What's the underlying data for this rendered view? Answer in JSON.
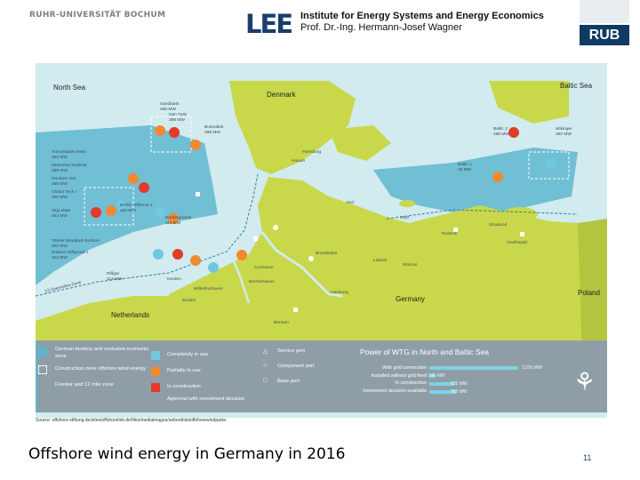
{
  "header": {
    "university": "RUHR-UNIVERSITÄT BOCHUM",
    "lee_logo": "LEE",
    "institute_line1": "Institute for Energy Systems and Energy Economics",
    "institute_line2": "Prof. Dr.-Ing. Hermann-Josef Wagner",
    "rub_logo": "RUB"
  },
  "map": {
    "regions": {
      "north_sea": "North Sea",
      "baltic_sea": "Baltic Sea",
      "denmark": "Denmark",
      "germany": "Germany",
      "netherlands": "Netherlands",
      "poland": "Poland"
    },
    "colors": {
      "sea": "#d2ebef",
      "land": "#c8d84a",
      "eez": "#5fb7cf",
      "completed": "#6fc8df",
      "partially": "#f08a2e",
      "construction": "#e23b2a"
    },
    "wind_parks": [
      {
        "name": "Sandbank",
        "mw": "288 MW"
      },
      {
        "name": "Dan Tysk",
        "mw": "288 MW"
      },
      {
        "name": "Butendiek",
        "mw": "288 MW"
      },
      {
        "name": "Amrumbank West",
        "mw": "302 MW"
      },
      {
        "name": "Meerwind Süd/Ost",
        "mw": "288 MW"
      },
      {
        "name": "Nordsee Ost",
        "mw": "295 MW"
      },
      {
        "name": "Global Tech I",
        "mw": "400 MW"
      },
      {
        "name": "BARD Offshore 1",
        "mw": "400 MW"
      },
      {
        "name": "Veja Mate",
        "mw": "402 MW"
      },
      {
        "name": "Nordergründe",
        "mw": "111 MW"
      },
      {
        "name": "Trianel Windpark Borkum",
        "mw": "200 MW"
      },
      {
        "name": "Borkum Riffgrund 1",
        "mw": "312 MW"
      },
      {
        "name": "Riffgat",
        "mw": "113 MW"
      },
      {
        "name": "Baltic 1",
        "mw": "48 MW"
      },
      {
        "name": "Baltic 2",
        "mw": "288 MW"
      },
      {
        "name": "Wikinger",
        "mw": "350 MW"
      }
    ],
    "cities": [
      "Husum",
      "Flensburg",
      "Kiel",
      "Rostock",
      "Stralsund",
      "Greifswald",
      "Lübeck",
      "Hamburg",
      "Bremerhaven",
      "Cuxhaven",
      "Wilhelmshaven",
      "Emden",
      "Norden",
      "Bremen",
      "Wismar",
      "Brunsbüttel"
    ],
    "sea_labels": [
      "AWZ",
      "12-Seemeilen-Zone"
    ]
  },
  "legend": {
    "items": [
      {
        "label": "German territory and exclusive economic zone"
      },
      {
        "label": "Construction zone offshore wind energy"
      },
      {
        "label": "Frontier and 12 mile zone"
      },
      {
        "label": "Completely in use"
      },
      {
        "label": "Partially in use"
      },
      {
        "label": "In construction"
      },
      {
        "label": "Approval with investment decision"
      },
      {
        "label": "Service port"
      },
      {
        "label": "Component port"
      },
      {
        "label": "Base port"
      }
    ],
    "power": {
      "title": "Power of WTG in North and Baltic Sea",
      "rows": [
        {
          "label": "With grid connection",
          "value": "3,295 MW",
          "fraction": 1.0
        },
        {
          "label": "Installed without grid feed",
          "value": "246 MW",
          "fraction": 0.07
        },
        {
          "label": "In construction",
          "value": "939 MW",
          "fraction": 0.28
        },
        {
          "label": "Investment decision available",
          "value": "985 MW",
          "fraction": 0.3
        }
      ]
    }
  },
  "source": "Source: offshore-stiftung.de/sites/offshorelink.de/files/medialmages/ueberdiststoffshorewindparks",
  "slide": {
    "title": "Offshore wind energy in Germany in 2016",
    "page": "11"
  }
}
